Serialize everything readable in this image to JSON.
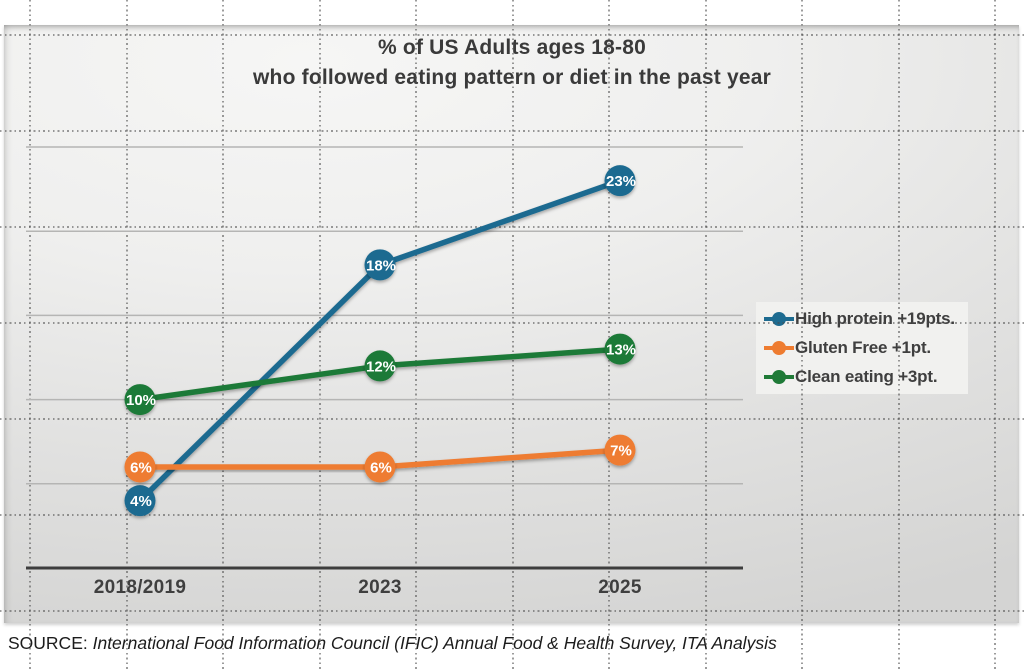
{
  "title": {
    "line1": "% of US Adults ages 18-80",
    "line2": "who followed eating pattern or diet in the past year"
  },
  "chart_data": {
    "type": "line",
    "title": "% of US Adults ages 18-80 who followed eating pattern or diet in the past year",
    "categories": [
      "2018/2019",
      "2023",
      "2025"
    ],
    "series": [
      {
        "name": "High protein",
        "legend_label": "High protein +19pts.",
        "color": "#1d6b90",
        "values": [
          4,
          18,
          23
        ],
        "point_labels": [
          "4%",
          "18%",
          "23%"
        ]
      },
      {
        "name": "Gluten Free",
        "legend_label": "Gluten Free +1pt.",
        "color": "#ee7c30",
        "values": [
          6,
          6,
          7
        ],
        "point_labels": [
          "6%",
          "6%",
          "7%"
        ]
      },
      {
        "name": "Clean eating",
        "legend_label": "Clean eating +3pt.",
        "color": "#1f7a37",
        "values": [
          10,
          12,
          13
        ],
        "point_labels": [
          "10%",
          "12%",
          "13%"
        ]
      }
    ],
    "xlabel": "",
    "ylabel": "",
    "ylim": [
      0,
      30
    ],
    "grid_step": 5,
    "y_axis_labels_shown": false,
    "gridlines": "horizontal solid, 5% intervals",
    "legend_position": "right",
    "data_labels": "on point, white bold text in colored circle markers"
  },
  "colors": {
    "axis_line": "#3d3d3d",
    "gridline": "#b5b5b4",
    "title_text": "#3a3a3a",
    "axis_label_text": "#3f3f3f",
    "legend_bg": "#f1f1ef",
    "panel_light": "#f6f6f5",
    "panel_dark": "#d4d4d3"
  },
  "source": {
    "prefix": "SOURCE:",
    "text": " International Food Information Council (IFIC) Annual Food & Health Survey, ITA Analysis"
  }
}
